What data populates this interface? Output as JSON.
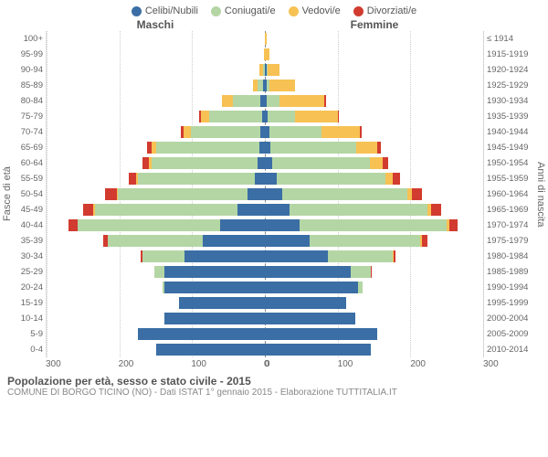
{
  "legend": [
    {
      "label": "Celibi/Nubili",
      "color": "#3a6ea5"
    },
    {
      "label": "Coniugati/e",
      "color": "#b4d6a4"
    },
    {
      "label": "Vedovi/e",
      "color": "#f7c154"
    },
    {
      "label": "Divorziati/e",
      "color": "#d23b2f"
    }
  ],
  "gender": {
    "male": "Maschi",
    "female": "Femmine"
  },
  "axis_left_label": "Fasce di età",
  "axis_right_label": "Anni di nascita",
  "ages": [
    "100+",
    "95-99",
    "90-94",
    "85-89",
    "80-84",
    "75-79",
    "70-74",
    "65-69",
    "60-64",
    "55-59",
    "50-54",
    "45-49",
    "40-44",
    "35-39",
    "30-34",
    "25-29",
    "20-24",
    "15-19",
    "10-14",
    "5-9",
    "0-4"
  ],
  "births": [
    "≤ 1914",
    "1915-1919",
    "1920-1924",
    "1925-1929",
    "1930-1934",
    "1935-1939",
    "1940-1944",
    "1945-1949",
    "1950-1954",
    "1955-1959",
    "1960-1964",
    "1965-1969",
    "1970-1974",
    "1975-1979",
    "1980-1984",
    "1985-1989",
    "1990-1994",
    "1995-1999",
    "2000-2004",
    "2005-2009",
    "2010-2014"
  ],
  "xmax": 300,
  "xticks": [
    0,
    100,
    200,
    300
  ],
  "colors": {
    "celibi": "#3a6ea5",
    "coniugati": "#b4d6a4",
    "vedovi": "#f7c154",
    "divorziati": "#d23b2f",
    "grid": "#cccccc",
    "center": "#888888",
    "text": "#666666"
  },
  "bars": [
    {
      "m": [
        0,
        0,
        0,
        0
      ],
      "f": [
        0,
        0,
        2,
        0
      ]
    },
    {
      "m": [
        0,
        0,
        1,
        0
      ],
      "f": [
        0,
        0,
        6,
        0
      ]
    },
    {
      "m": [
        0,
        3,
        4,
        0
      ],
      "f": [
        2,
        2,
        16,
        0
      ]
    },
    {
      "m": [
        2,
        8,
        6,
        0
      ],
      "f": [
        2,
        4,
        36,
        0
      ]
    },
    {
      "m": [
        6,
        38,
        15,
        0
      ],
      "f": [
        2,
        18,
        62,
        2
      ]
    },
    {
      "m": [
        4,
        72,
        12,
        2
      ],
      "f": [
        4,
        38,
        58,
        1
      ]
    },
    {
      "m": [
        6,
        96,
        10,
        4
      ],
      "f": [
        6,
        72,
        52,
        3
      ]
    },
    {
      "m": [
        8,
        142,
        6,
        6
      ],
      "f": [
        8,
        118,
        28,
        6
      ]
    },
    {
      "m": [
        10,
        146,
        4,
        8
      ],
      "f": [
        10,
        134,
        18,
        8
      ]
    },
    {
      "m": [
        14,
        160,
        3,
        10
      ],
      "f": [
        16,
        150,
        10,
        10
      ]
    },
    {
      "m": [
        24,
        178,
        2,
        16
      ],
      "f": [
        24,
        172,
        6,
        14
      ]
    },
    {
      "m": [
        38,
        196,
        2,
        14
      ],
      "f": [
        34,
        190,
        4,
        14
      ]
    },
    {
      "m": [
        62,
        195,
        0,
        13
      ],
      "f": [
        48,
        202,
        3,
        12
      ]
    },
    {
      "m": [
        86,
        130,
        0,
        6
      ],
      "f": [
        62,
        152,
        2,
        7
      ]
    },
    {
      "m": [
        110,
        58,
        0,
        3
      ],
      "f": [
        86,
        90,
        1,
        3
      ]
    },
    {
      "m": [
        138,
        14,
        0,
        0
      ],
      "f": [
        118,
        28,
        0,
        1
      ]
    },
    {
      "m": [
        138,
        2,
        0,
        0
      ],
      "f": [
        128,
        6,
        0,
        0
      ]
    },
    {
      "m": [
        118,
        0,
        0,
        0
      ],
      "f": [
        112,
        0,
        0,
        0
      ]
    },
    {
      "m": [
        138,
        0,
        0,
        0
      ],
      "f": [
        124,
        0,
        0,
        0
      ]
    },
    {
      "m": [
        175,
        0,
        0,
        0
      ],
      "f": [
        155,
        0,
        0,
        0
      ]
    },
    {
      "m": [
        150,
        0,
        0,
        0
      ],
      "f": [
        145,
        0,
        0,
        0
      ]
    }
  ],
  "title": "Popolazione per età, sesso e stato civile - 2015",
  "subtitle": "COMUNE DI BORGO TICINO (NO) - Dati ISTAT 1° gennaio 2015 - Elaborazione TUTTITALIA.IT"
}
